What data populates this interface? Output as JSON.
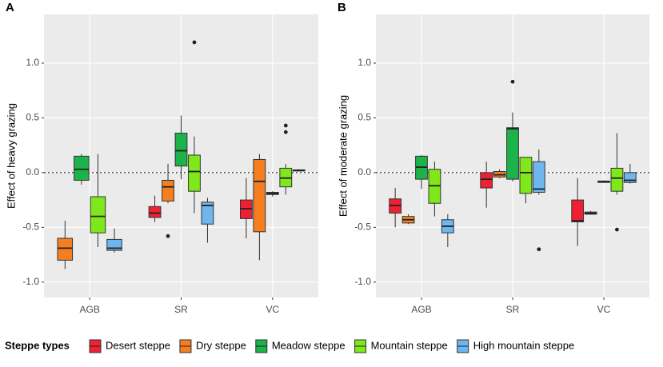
{
  "legend": {
    "title": "Steppe types",
    "items": [
      {
        "name": "Desert steppe",
        "color": "#ee2033"
      },
      {
        "name": "Dry steppe",
        "color": "#f57f20"
      },
      {
        "name": "Meadow steppe",
        "color": "#1db34b"
      },
      {
        "name": "Mountain steppe",
        "color": "#7ee81a"
      },
      {
        "name": "High mountain steppe",
        "color": "#6fb6ee"
      }
    ]
  },
  "chart_data": [
    {
      "type": "box",
      "panel": "A",
      "ylabel": "Effect of heavy grazing",
      "categories": [
        "AGB",
        "SR",
        "VC"
      ],
      "ylim": [
        -1.14,
        1.445
      ],
      "yticks": [
        {
          "value": 1,
          "label": "1.0"
        },
        0.5,
        {
          "value": 0,
          "label": "0.0"
        },
        -0.5,
        {
          "value": -1,
          "label": "-1.0"
        }
      ],
      "hline": 0,
      "grid": true,
      "series": [
        {
          "values": [
            null,
            {
              "min": -0.45,
              "q1": -0.41,
              "median": -0.37,
              "q3": -0.31,
              "max": -0.21,
              "outliers": []
            },
            {
              "min": -0.6,
              "q1": -0.42,
              "median": -0.33,
              "q3": -0.25,
              "max": -0.05,
              "outliers": []
            }
          ]
        },
        {
          "values": [
            {
              "min": -0.88,
              "q1": -0.8,
              "median": -0.69,
              "q3": -0.6,
              "max": -0.44,
              "outliers": []
            },
            {
              "min": -0.28,
              "q1": -0.26,
              "median": -0.13,
              "q3": -0.07,
              "max": 0.08,
              "outliers": [
                -0.58
              ]
            },
            {
              "min": -0.8,
              "q1": -0.54,
              "median": -0.08,
              "q3": 0.12,
              "max": 0.17,
              "outliers": []
            }
          ]
        },
        {
          "values": [
            {
              "min": -0.11,
              "q1": -0.07,
              "median": 0.03,
              "q3": 0.15,
              "max": 0.17,
              "outliers": []
            },
            {
              "min": -0.06,
              "q1": 0.06,
              "median": 0.2,
              "q3": 0.36,
              "max": 0.52,
              "outliers": []
            },
            {
              "min": -0.22,
              "q1": -0.2,
              "median": -0.19,
              "q3": -0.18,
              "max": -0.17,
              "outliers": []
            }
          ]
        },
        {
          "values": [
            {
              "min": -0.68,
              "q1": -0.55,
              "median": -0.4,
              "q3": -0.22,
              "max": 0.17,
              "outliers": []
            },
            {
              "min": -0.37,
              "q1": -0.17,
              "median": 0.01,
              "q3": 0.16,
              "max": 0.33,
              "outliers": [
                1.19
              ]
            },
            {
              "min": -0.2,
              "q1": -0.13,
              "median": -0.05,
              "q3": 0.04,
              "max": 0.08,
              "outliers": [
                0.43,
                0.37
              ]
            }
          ]
        },
        {
          "values": [
            {
              "min": -0.73,
              "q1": -0.71,
              "median": -0.69,
              "q3": -0.61,
              "max": -0.51,
              "outliers": []
            },
            {
              "min": -0.64,
              "q1": -0.47,
              "median": -0.3,
              "q3": -0.27,
              "max": -0.23,
              "outliers": []
            },
            {
              "min": 0.01,
              "q1": 0.015,
              "median": 0.02,
              "q3": 0.025,
              "max": 0.03,
              "outliers": []
            }
          ]
        }
      ]
    },
    {
      "type": "box",
      "panel": "B",
      "ylabel": "Effect of moderate grazing",
      "categories": [
        "AGB",
        "SR",
        "VC"
      ],
      "ylim": [
        -1.14,
        1.445
      ],
      "yticks": [
        {
          "value": 1,
          "label": "1.0"
        },
        0.5,
        {
          "value": 0,
          "label": "0.0"
        },
        -0.5,
        {
          "value": -1,
          "label": "-1.0"
        }
      ],
      "hline": 0,
      "grid": true,
      "series": [
        {
          "values": [
            {
              "min": -0.5,
              "q1": -0.37,
              "median": -0.3,
              "q3": -0.24,
              "max": -0.14,
              "outliers": []
            },
            {
              "min": -0.32,
              "q1": -0.14,
              "median": -0.06,
              "q3": 0,
              "max": 0.1,
              "outliers": []
            },
            {
              "min": -0.67,
              "q1": -0.45,
              "median": -0.44,
              "q3": -0.25,
              "max": -0.05,
              "outliers": []
            }
          ]
        },
        {
          "values": [
            {
              "min": -0.47,
              "q1": -0.46,
              "median": -0.43,
              "q3": -0.4,
              "max": -0.38,
              "outliers": []
            },
            {
              "min": -0.05,
              "q1": -0.04,
              "median": -0.02,
              "q3": 0.01,
              "max": 0.03,
              "outliers": []
            },
            {
              "min": -0.38,
              "q1": -0.38,
              "median": -0.37,
              "q3": -0.36,
              "max": -0.35,
              "outliers": []
            }
          ]
        },
        {
          "values": [
            {
              "min": -0.15,
              "q1": -0.06,
              "median": 0.05,
              "q3": 0.15,
              "max": 0.16,
              "outliers": []
            },
            {
              "min": -0.08,
              "q1": -0.06,
              "median": 0.4,
              "q3": 0.41,
              "max": 0.55,
              "outliers": [
                0.83
              ]
            },
            {
              "min": -0.09,
              "q1": -0.09,
              "median": -0.08,
              "q3": -0.08,
              "max": -0.07,
              "outliers": []
            }
          ]
        },
        {
          "values": [
            {
              "min": -0.4,
              "q1": -0.28,
              "median": -0.12,
              "q3": 0.03,
              "max": 0.1,
              "outliers": []
            },
            {
              "min": -0.28,
              "q1": -0.19,
              "median": 0,
              "q3": 0.14,
              "max": 0.14,
              "outliers": []
            },
            {
              "min": -0.2,
              "q1": -0.17,
              "median": -0.05,
              "q3": 0.04,
              "max": 0.36,
              "outliers": [
                -0.52
              ]
            }
          ]
        },
        {
          "values": [
            {
              "min": -0.68,
              "q1": -0.55,
              "median": -0.49,
              "q3": -0.43,
              "max": -0.38,
              "outliers": []
            },
            {
              "min": -0.2,
              "q1": -0.18,
              "median": -0.15,
              "q3": 0.1,
              "max": 0.21,
              "outliers": [
                -0.7
              ]
            },
            {
              "min": -0.1,
              "q1": -0.09,
              "median": -0.07,
              "q3": 0,
              "max": 0.08,
              "outliers": []
            }
          ]
        }
      ]
    }
  ]
}
